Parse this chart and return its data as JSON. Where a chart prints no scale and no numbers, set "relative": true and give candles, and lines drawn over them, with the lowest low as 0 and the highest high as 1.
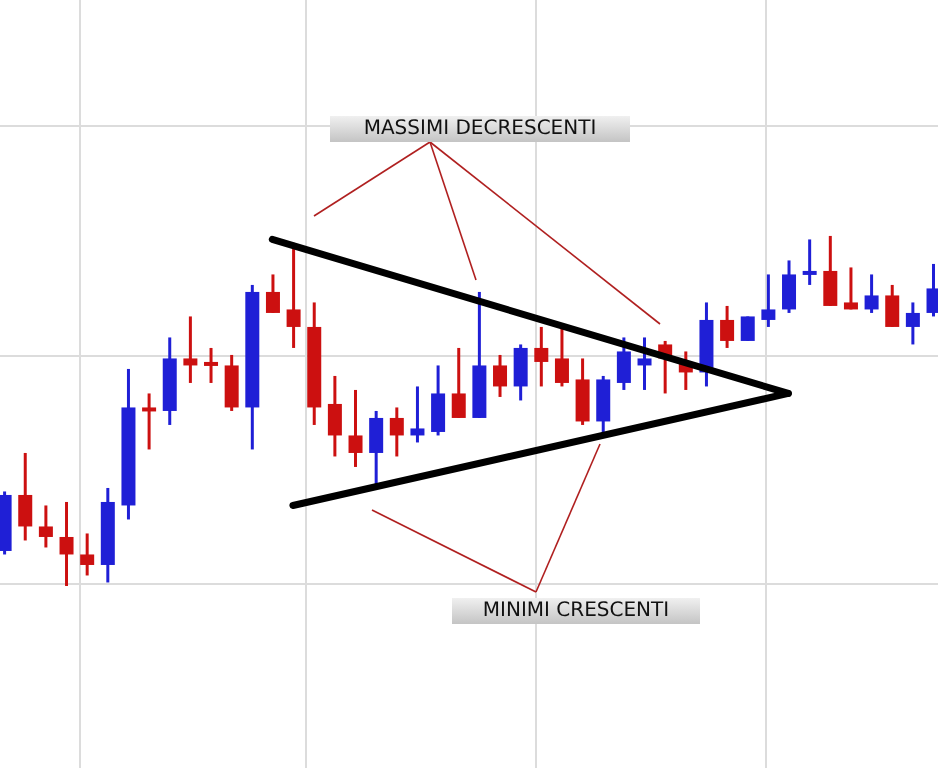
{
  "chart_data": {
    "type": "candlestick",
    "relative": true,
    "grid": true,
    "annotations": [
      "MASSIMI DECRESCENTI",
      "MINIMI CRESCENTI"
    ],
    "categories": [
      null,
      null,
      null,
      null,
      null,
      null,
      null,
      null,
      null,
      null,
      null,
      null,
      null,
      null,
      null,
      null,
      null,
      null,
      null,
      null,
      null,
      null,
      null,
      null,
      null,
      null,
      null,
      null,
      null,
      null,
      null,
      null,
      null,
      null,
      null,
      null,
      null,
      null,
      null,
      null,
      null,
      null,
      null,
      null,
      null,
      null
    ],
    "ohlc": [
      [
        0.1,
        0.27,
        0.09,
        0.26
      ],
      [
        0.26,
        0.38,
        0.13,
        0.17
      ],
      [
        0.17,
        0.23,
        0.11,
        0.14
      ],
      [
        0.14,
        0.24,
        0,
        0.09
      ],
      [
        0.09,
        0.15,
        0.03,
        0.06
      ],
      [
        0.06,
        0.28,
        0.01,
        0.24
      ],
      [
        0.23,
        0.62,
        0.19,
        0.51
      ],
      [
        0.51,
        0.55,
        0.39,
        0.5
      ],
      [
        0.5,
        0.71,
        0.46,
        0.65
      ],
      [
        0.65,
        0.77,
        0.58,
        0.63
      ],
      [
        0.64,
        0.68,
        0.58,
        0.63
      ],
      [
        0.63,
        0.66,
        0.5,
        0.51
      ],
      [
        0.51,
        0.86,
        0.39,
        0.84
      ],
      [
        0.84,
        0.89,
        0.78,
        0.78
      ],
      [
        0.79,
        0.98,
        0.68,
        0.74
      ],
      [
        0.74,
        0.81,
        0.46,
        0.51
      ],
      [
        0.52,
        0.6,
        0.37,
        0.43
      ],
      [
        0.43,
        0.56,
        0.34,
        0.38
      ],
      [
        0.38,
        0.5,
        0.29,
        0.48
      ],
      [
        0.48,
        0.51,
        0.37,
        0.43
      ],
      [
        0.43,
        0.57,
        0.41,
        0.45
      ],
      [
        0.44,
        0.63,
        0.43,
        0.55
      ],
      [
        0.55,
        0.68,
        0.48,
        0.48
      ],
      [
        0.48,
        0.84,
        0.48,
        0.63
      ],
      [
        0.63,
        0.66,
        0.54,
        0.57
      ],
      [
        0.57,
        0.69,
        0.53,
        0.68
      ],
      [
        0.68,
        0.74,
        0.57,
        0.64
      ],
      [
        0.65,
        0.74,
        0.57,
        0.58
      ],
      [
        0.59,
        0.65,
        0.46,
        0.47
      ],
      [
        0.47,
        0.6,
        0.43,
        0.59
      ],
      [
        0.58,
        0.71,
        0.56,
        0.67
      ],
      [
        0.63,
        0.71,
        0.56,
        0.65
      ],
      [
        0.69,
        0.7,
        0.55,
        0.65
      ],
      [
        0.64,
        0.67,
        0.56,
        0.61
      ],
      [
        0.61,
        0.81,
        0.57,
        0.76
      ],
      [
        0.76,
        0.8,
        0.68,
        0.7
      ],
      [
        0.7,
        0.77,
        0.7,
        0.77
      ],
      [
        0.76,
        0.89,
        0.74,
        0.79
      ],
      [
        0.79,
        0.93,
        0.78,
        0.89
      ],
      [
        0.89,
        0.99,
        0.86,
        0.9
      ],
      [
        0.9,
        1.0,
        0.8,
        0.8
      ],
      [
        0.81,
        0.91,
        0.79,
        0.79
      ],
      [
        0.79,
        0.89,
        0.78,
        0.83
      ],
      [
        0.83,
        0.86,
        0.74,
        0.74
      ],
      [
        0.74,
        0.81,
        0.69,
        0.78
      ],
      [
        0.78,
        0.92,
        0.77,
        0.85
      ]
    ],
    "colors": [
      "#1f1fd6",
      "#cc1010",
      "#cc1010",
      "#cc1010",
      "#cc1010",
      "#1f1fd6",
      "#1f1fd6",
      "#cc1010",
      "#1f1fd6",
      "#cc1010",
      "#cc1010",
      "#cc1010",
      "#1f1fd6",
      "#cc1010",
      "#cc1010",
      "#cc1010",
      "#cc1010",
      "#cc1010",
      "#1f1fd6",
      "#cc1010",
      "#1f1fd6",
      "#1f1fd6",
      "#cc1010",
      "#1f1fd6",
      "#cc1010",
      "#1f1fd6",
      "#cc1010",
      "#cc1010",
      "#cc1010",
      "#1f1fd6",
      "#1f1fd6",
      "#1f1fd6",
      "#cc1010",
      "#cc1010",
      "#1f1fd6",
      "#cc1010",
      "#1f1fd6",
      "#1f1fd6",
      "#1f1fd6",
      "#1f1fd6",
      "#cc1010",
      "#cc1010",
      "#1f1fd6",
      "#cc1010",
      "#1f1fd6",
      "#1f1fd6"
    ],
    "series": [
      {
        "type": "line",
        "color": "#000000",
        "values": [
          null,
          null,
          null,
          null,
          null,
          null,
          null,
          null,
          null,
          null,
          null,
          null,
          null,
          0.99,
          null,
          null,
          null,
          null,
          null,
          null,
          null,
          null,
          null,
          null,
          null,
          null,
          null,
          null,
          null,
          null,
          null,
          null,
          null,
          null,
          null,
          null,
          null,
          null,
          0.55,
          null,
          null,
          null,
          null,
          null,
          null,
          null
        ]
      },
      {
        "type": "line",
        "color": "#000000",
        "values": [
          null,
          null,
          null,
          null,
          null,
          null,
          null,
          null,
          null,
          null,
          null,
          null,
          null,
          null,
          0.23,
          null,
          null,
          null,
          null,
          null,
          null,
          null,
          null,
          null,
          null,
          null,
          null,
          null,
          null,
          null,
          null,
          null,
          null,
          null,
          null,
          null,
          null,
          null,
          0.55,
          null,
          null,
          null,
          null,
          null,
          null,
          null
        ]
      }
    ]
  }
}
